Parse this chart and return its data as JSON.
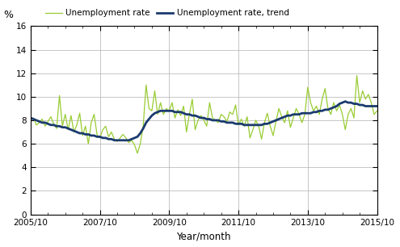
{
  "title": "",
  "ylabel": "%",
  "xlabel": "Year/month",
  "ylim": [
    0,
    16
  ],
  "yticks": [
    0,
    2,
    4,
    6,
    8,
    10,
    12,
    14,
    16
  ],
  "xtick_labels": [
    "2005/10",
    "2007/10",
    "2009/10",
    "2011/10",
    "2013/10",
    "2015/10"
  ],
  "xtick_positions": [
    0,
    24,
    48,
    72,
    96,
    120
  ],
  "n_points": 121,
  "legend_labels": [
    "Unemployment rate",
    "Unemployment rate, trend"
  ],
  "line_color_raw": "#99cc33",
  "line_color_trend": "#1a3a6e",
  "unemployment_rate": [
    8.0,
    8.2,
    7.6,
    7.8,
    8.1,
    7.5,
    7.9,
    8.3,
    7.7,
    7.3,
    10.1,
    7.5,
    8.5,
    7.2,
    8.4,
    7.0,
    7.6,
    8.6,
    6.7,
    7.5,
    6.0,
    7.8,
    8.5,
    6.8,
    6.5,
    7.2,
    7.5,
    6.6,
    7.0,
    6.4,
    6.2,
    6.5,
    6.8,
    6.5,
    6.1,
    6.3,
    5.9,
    5.2,
    6.0,
    7.5,
    11.0,
    9.0,
    8.8,
    10.5,
    8.5,
    9.5,
    8.5,
    9.0,
    8.8,
    9.5,
    8.2,
    8.9,
    8.4,
    9.2,
    7.0,
    8.5,
    9.8,
    7.2,
    8.0,
    8.4,
    8.0,
    7.5,
    9.5,
    8.2,
    8.0,
    7.8,
    8.5,
    8.3,
    7.9,
    8.7,
    8.5,
    9.3,
    7.6,
    8.1,
    7.5,
    8.3,
    6.5,
    7.2,
    8.0,
    7.5,
    6.4,
    7.8,
    8.6,
    7.5,
    6.7,
    7.9,
    9.0,
    8.3,
    7.8,
    8.8,
    7.4,
    8.2,
    9.0,
    8.5,
    7.8,
    8.5,
    10.8,
    9.5,
    8.8,
    9.2,
    8.5,
    9.8,
    10.7,
    9.0,
    8.5,
    9.5,
    8.8,
    9.3,
    8.5,
    7.2,
    8.5,
    9.0,
    8.2,
    11.8,
    9.5,
    10.5,
    9.8,
    10.2,
    9.5,
    8.5,
    8.8
  ],
  "unemployment_trend": [
    8.2,
    8.1,
    8.0,
    7.9,
    7.8,
    7.8,
    7.7,
    7.6,
    7.6,
    7.5,
    7.5,
    7.4,
    7.4,
    7.3,
    7.2,
    7.1,
    7.0,
    6.9,
    6.9,
    6.8,
    6.8,
    6.7,
    6.7,
    6.6,
    6.6,
    6.5,
    6.5,
    6.4,
    6.4,
    6.3,
    6.3,
    6.3,
    6.3,
    6.3,
    6.3,
    6.4,
    6.5,
    6.6,
    6.9,
    7.3,
    7.8,
    8.1,
    8.4,
    8.6,
    8.7,
    8.8,
    8.8,
    8.8,
    8.8,
    8.8,
    8.7,
    8.7,
    8.7,
    8.6,
    8.5,
    8.5,
    8.4,
    8.4,
    8.3,
    8.2,
    8.2,
    8.1,
    8.1,
    8.0,
    8.0,
    8.0,
    7.9,
    7.9,
    7.8,
    7.8,
    7.8,
    7.7,
    7.7,
    7.7,
    7.6,
    7.6,
    7.6,
    7.6,
    7.6,
    7.6,
    7.6,
    7.7,
    7.7,
    7.8,
    7.9,
    8.0,
    8.1,
    8.2,
    8.3,
    8.4,
    8.4,
    8.5,
    8.5,
    8.5,
    8.6,
    8.6,
    8.6,
    8.6,
    8.7,
    8.7,
    8.8,
    8.8,
    8.9,
    8.9,
    9.0,
    9.1,
    9.2,
    9.4,
    9.5,
    9.6,
    9.5,
    9.5,
    9.4,
    9.4,
    9.3,
    9.3,
    9.2,
    9.2,
    9.2,
    9.2,
    9.2
  ],
  "background_color": "#ffffff",
  "grid_color": "#b0b0b0"
}
